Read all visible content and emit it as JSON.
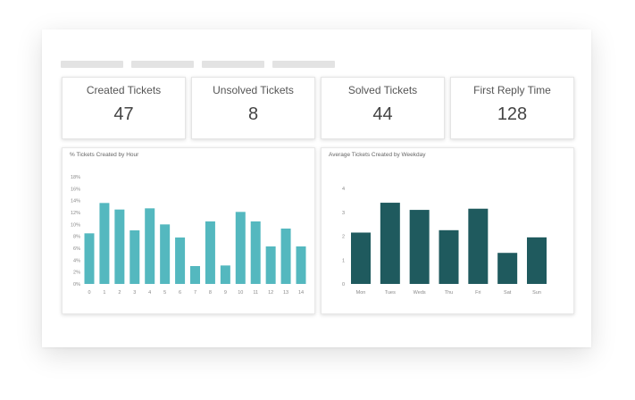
{
  "tabs": [
    "",
    "",
    "",
    ""
  ],
  "stats": [
    {
      "label": "Created Tickets",
      "value": "47"
    },
    {
      "label": "Unsolved Tickets",
      "value": "8"
    },
    {
      "label": "Solved Tickets",
      "value": "44"
    },
    {
      "label": "First Reply Time",
      "value": "128"
    }
  ],
  "colors": {
    "teal": "#54b8bf",
    "dark_teal": "#1f5a5e"
  },
  "chart_data": [
    {
      "type": "bar",
      "title": "% Tickets Created by Hour",
      "categories": [
        "0",
        "1",
        "2",
        "3",
        "4",
        "5",
        "6",
        "7",
        "8",
        "9",
        "10",
        "11",
        "12",
        "13",
        "14"
      ],
      "values": [
        8.5,
        13.6,
        12.5,
        9.0,
        12.7,
        10.0,
        7.8,
        3.0,
        10.5,
        3.1,
        12.1,
        10.5,
        6.3,
        9.3,
        6.3
      ],
      "y_ticks": [
        "0%",
        "2%",
        "4%",
        "6%",
        "8%",
        "10%",
        "12%",
        "14%",
        "16%",
        "18%"
      ],
      "ylim": [
        0,
        18
      ],
      "xlabel": "",
      "ylabel": "",
      "grid": false,
      "color": "#54b8bf"
    },
    {
      "type": "bar",
      "title": "Average Tickets Created by Weekday",
      "categories": [
        "Mon",
        "Tues",
        "Weds",
        "Thu",
        "Fri",
        "Sat",
        "Sun"
      ],
      "values": [
        2.15,
        3.4,
        3.1,
        2.25,
        3.15,
        1.3,
        1.95
      ],
      "y_ticks": [
        "0",
        "1",
        "2",
        "3",
        "4"
      ],
      "ylim": [
        0,
        4
      ],
      "xlabel": "",
      "ylabel": "",
      "grid": false,
      "color": "#1f5a5e"
    }
  ]
}
